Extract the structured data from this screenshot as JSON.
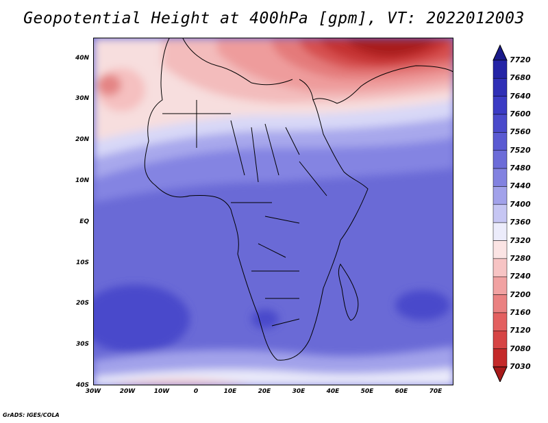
{
  "title": "Geopotential Height at 400hPa [gpm], VT: 2022012003",
  "footer": "GrADS: IGES/COLA",
  "map": {
    "region": "Africa and surrounding oceans",
    "lon_range": [
      -30,
      75
    ],
    "lat_range": [
      -40,
      45
    ],
    "lat_ticks": [
      "40N",
      "30N",
      "20N",
      "10N",
      "EQ",
      "10S",
      "20S",
      "30S",
      "40S"
    ],
    "lon_ticks": [
      "30W",
      "20W",
      "10W",
      "0",
      "10E",
      "20E",
      "30E",
      "40E",
      "50E",
      "60E",
      "70E"
    ]
  },
  "colorbar": {
    "labels": [
      "7720",
      "7680",
      "7640",
      "7600",
      "7560",
      "7520",
      "7480",
      "7440",
      "7400",
      "7360",
      "7320",
      "7280",
      "7240",
      "7200",
      "7160",
      "7120",
      "7080",
      "7030"
    ],
    "colors": [
      "#1a1a8a",
      "#2424a6",
      "#2f2fb6",
      "#3b3bc4",
      "#4a4acb",
      "#5a5ad2",
      "#6c6cd8",
      "#8282e0",
      "#a2a2ea",
      "#c6c6f3",
      "#ececfb",
      "#fbe4e4",
      "#f7c4c4",
      "#f1a2a2",
      "#ea8181",
      "#e36060",
      "#d64545",
      "#c42a2a",
      "#a81a1a"
    ]
  }
}
